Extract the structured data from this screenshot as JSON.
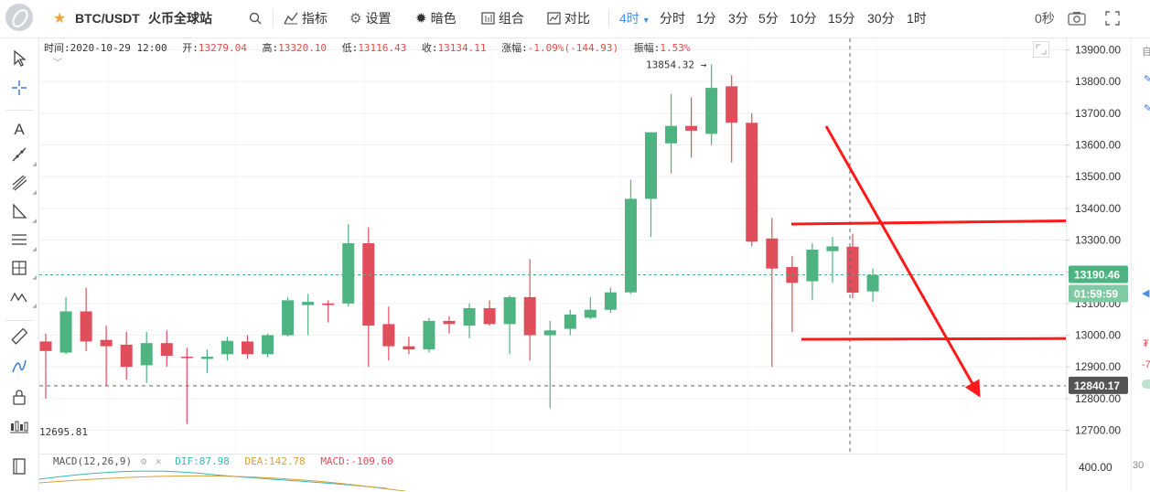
{
  "toolbar": {
    "symbol": "BTC/USDT",
    "exchange": "火币全球站",
    "indicators": "指标",
    "settings": "设置",
    "theme": "暗色",
    "combo": "组合",
    "compare": "对比",
    "interval_active": "4时",
    "intervals": [
      "分时",
      "1分",
      "3分",
      "5分",
      "10分",
      "15分",
      "30分",
      "1时"
    ],
    "seconds": "0秒"
  },
  "info": {
    "time_label": "时间:",
    "time": "2020-10-29 12:00",
    "open_label": "开:",
    "open": "13279.04",
    "high_label": "高:",
    "high": "13320.10",
    "low_label": "低:",
    "low": "13116.43",
    "close_label": "收:",
    "close": "13134.11",
    "change_label": "涨幅:",
    "change": "-1.09%(-144.93)",
    "amp_label": "振幅:",
    "amplitude": "1.53%"
  },
  "macd": {
    "title": "MACD(12,26,9)",
    "dif": "DIF:87.98",
    "dea": "DEA:142.78",
    "macd": "MACD:-109.60"
  },
  "colors": {
    "up": "#4db380",
    "down": "#e04e5c",
    "accent": "#4a90e2",
    "arrow": "#ff1a1a"
  },
  "right_strip": {
    "a": "自",
    "b": "₮",
    "c": "-7",
    "d": "30"
  },
  "chart_data": {
    "type": "candlestick",
    "title": "BTC/USDT 4时",
    "y_ticks": [
      13900,
      13800,
      13700,
      13600,
      13500,
      13400,
      13300,
      13200,
      13100,
      13000,
      12900,
      12800,
      12700
    ],
    "y_tick_labels": [
      "13900.00",
      "13800.00",
      "13700.00",
      "13600.00",
      "13500.00",
      "13400.00",
      "13300.00",
      "13200.00",
      "13100.00",
      "13000.00",
      "12900.00",
      "12800.00",
      "12700.00"
    ],
    "ylim": [
      12655,
      13975
    ],
    "macd_tick_label": "400.00",
    "max_label": "13854.32",
    "min_label": "12695.81",
    "current_price": "13190.46",
    "countdown": "01:59:59",
    "crosshair_price": "12840.17",
    "candles": [
      {
        "o": 12980,
        "h": 13005,
        "l": 12800,
        "c": 12950
      },
      {
        "o": 12945,
        "h": 13120,
        "l": 12940,
        "c": 13075
      },
      {
        "o": 13075,
        "h": 13150,
        "l": 12950,
        "c": 12980
      },
      {
        "o": 12985,
        "h": 13030,
        "l": 12840,
        "c": 12965
      },
      {
        "o": 12970,
        "h": 13010,
        "l": 12860,
        "c": 12900
      },
      {
        "o": 12905,
        "h": 13010,
        "l": 12850,
        "c": 12975
      },
      {
        "o": 12975,
        "h": 13015,
        "l": 12900,
        "c": 12935
      },
      {
        "o": 12932,
        "h": 12960,
        "l": 12720,
        "c": 12928
      },
      {
        "o": 12925,
        "h": 12955,
        "l": 12880,
        "c": 12932
      },
      {
        "o": 12940,
        "h": 12995,
        "l": 12920,
        "c": 12982
      },
      {
        "o": 12980,
        "h": 13000,
        "l": 12925,
        "c": 12940
      },
      {
        "o": 12940,
        "h": 13005,
        "l": 12930,
        "c": 13000
      },
      {
        "o": 13000,
        "h": 13120,
        "l": 12995,
        "c": 13110
      },
      {
        "o": 13095,
        "h": 13130,
        "l": 13000,
        "c": 13105
      },
      {
        "o": 13100,
        "h": 13110,
        "l": 13040,
        "c": 13095
      },
      {
        "o": 13100,
        "h": 13350,
        "l": 13090,
        "c": 13290
      },
      {
        "o": 13290,
        "h": 13340,
        "l": 12900,
        "c": 13030
      },
      {
        "o": 13035,
        "h": 13090,
        "l": 12920,
        "c": 12965
      },
      {
        "o": 12965,
        "h": 12995,
        "l": 12940,
        "c": 12955
      },
      {
        "o": 12955,
        "h": 13055,
        "l": 12945,
        "c": 13045
      },
      {
        "o": 13045,
        "h": 13060,
        "l": 13005,
        "c": 13035
      },
      {
        "o": 13030,
        "h": 13100,
        "l": 12990,
        "c": 13085
      },
      {
        "o": 13085,
        "h": 13110,
        "l": 13030,
        "c": 13035
      },
      {
        "o": 13035,
        "h": 13125,
        "l": 12940,
        "c": 13120
      },
      {
        "o": 13120,
        "h": 13240,
        "l": 12920,
        "c": 13000
      },
      {
        "o": 13000,
        "h": 13045,
        "l": 12770,
        "c": 13015
      },
      {
        "o": 13020,
        "h": 13080,
        "l": 13000,
        "c": 13065
      },
      {
        "o": 13055,
        "h": 13120,
        "l": 13050,
        "c": 13080
      },
      {
        "o": 13080,
        "h": 13150,
        "l": 13070,
        "c": 13135
      },
      {
        "o": 13135,
        "h": 13490,
        "l": 13130,
        "c": 13430
      },
      {
        "o": 13430,
        "h": 13630,
        "l": 13310,
        "c": 13640
      },
      {
        "o": 13605,
        "h": 13760,
        "l": 13510,
        "c": 13660
      },
      {
        "o": 13660,
        "h": 13750,
        "l": 13560,
        "c": 13645
      },
      {
        "o": 13635,
        "h": 13854,
        "l": 13600,
        "c": 13780
      },
      {
        "o": 13785,
        "h": 13820,
        "l": 13545,
        "c": 13670
      },
      {
        "o": 13670,
        "h": 13700,
        "l": 13280,
        "c": 13295
      },
      {
        "o": 13305,
        "h": 13370,
        "l": 12900,
        "c": 13210
      },
      {
        "o": 13215,
        "h": 13250,
        "l": 13010,
        "c": 13165
      },
      {
        "o": 13170,
        "h": 13290,
        "l": 13110,
        "c": 13270
      },
      {
        "o": 13265,
        "h": 13310,
        "l": 13165,
        "c": 13280
      },
      {
        "o": 13279,
        "h": 13320,
        "l": 13116,
        "c": 13134
      },
      {
        "o": 13138,
        "h": 13210,
        "l": 13105,
        "c": 13190
      }
    ],
    "macd_series": [
      {
        "name": "DIF"
      },
      {
        "name": "DEA"
      }
    ]
  }
}
